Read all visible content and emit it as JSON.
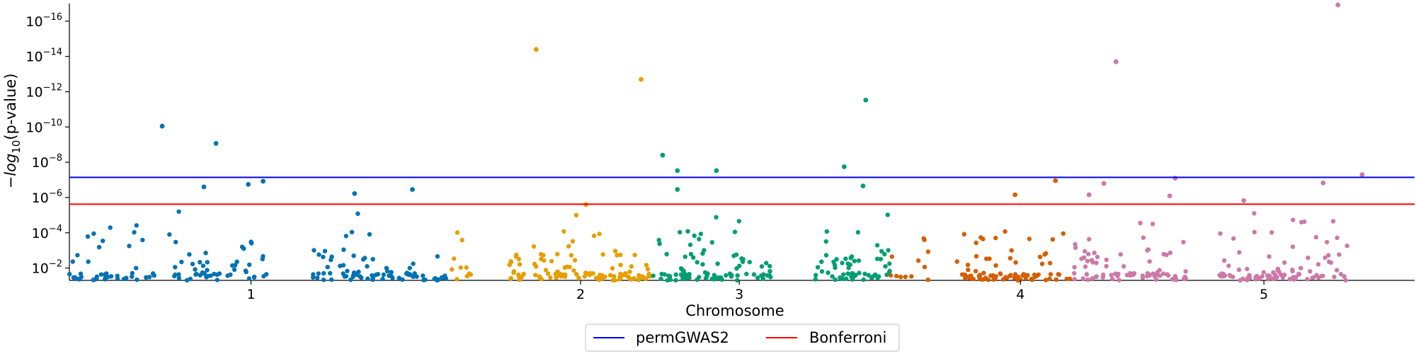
{
  "chart_data": {
    "type": "scatter",
    "title": "",
    "xlabel": "Chromosome",
    "ylabel_parts": {
      "prefix": "−",
      "log": "log",
      "sub": "10",
      "suffix": "(p-value)"
    },
    "y_scale": "log",
    "y_inverted": true,
    "ylim": [
      0.05,
      1e-17
    ],
    "y_ticks": [
      {
        "value": 0.01,
        "base": "10",
        "exp": "−2"
      },
      {
        "value": 0.0001,
        "base": "10",
        "exp": "−4"
      },
      {
        "value": 1e-06,
        "base": "10",
        "exp": "−6"
      },
      {
        "value": 1e-08,
        "base": "10",
        "exp": "−8"
      },
      {
        "value": 1e-10,
        "base": "10",
        "exp": "−10"
      },
      {
        "value": 1e-12,
        "base": "10",
        "exp": "−12"
      },
      {
        "value": 1e-14,
        "base": "10",
        "exp": "−14"
      },
      {
        "value": 1e-16,
        "base": "10",
        "exp": "−16"
      }
    ],
    "x_ticks": [
      {
        "label": "1",
        "position": 0.135
      },
      {
        "label": "2",
        "position": 0.38
      },
      {
        "label": "3",
        "position": 0.498
      },
      {
        "label": "4",
        "position": 0.707
      },
      {
        "label": "5",
        "position": 0.888
      }
    ],
    "thresholds": [
      {
        "name": "permGWAS2",
        "value": 7.2e-08,
        "color": "#0000ff"
      },
      {
        "name": "Bonferroni",
        "value": 2.4e-06,
        "color": "#ff0000"
      }
    ],
    "legend": {
      "placement": "below-center",
      "entries": [
        "permGWAS2",
        "Bonferroni"
      ]
    },
    "grid": false,
    "marker_colors": [
      "#0072b2",
      "#e69f00",
      "#009e73",
      "#d55e00",
      "#cc79a7"
    ],
    "segments": [
      {
        "color_index": 0,
        "x_range": [
          0.0,
          0.148
        ],
        "n": 95,
        "dense_max": 0.03
      },
      {
        "color_index": 0,
        "x_range": [
          0.18,
          0.28
        ],
        "n": 80,
        "dense_max": 0.04
      },
      {
        "color_index": 1,
        "x_range": [
          0.28,
          0.302
        ],
        "n": 10,
        "dense_max": 0.02
      },
      {
        "color_index": 1,
        "x_range": [
          0.327,
          0.432
        ],
        "n": 110,
        "dense_max": 0.04
      },
      {
        "color_index": 2,
        "x_range": [
          0.432,
          0.522
        ],
        "n": 85,
        "dense_max": 0.04
      },
      {
        "color_index": 2,
        "x_range": [
          0.552,
          0.61
        ],
        "n": 60,
        "dense_max": 0.03
      },
      {
        "color_index": 3,
        "x_range": [
          0.61,
          0.64
        ],
        "n": 12,
        "dense_max": 0.02
      },
      {
        "color_index": 3,
        "x_range": [
          0.657,
          0.745
        ],
        "n": 80,
        "dense_max": 0.04
      },
      {
        "color_index": 4,
        "x_range": [
          0.745,
          0.83
        ],
        "n": 80,
        "dense_max": 0.04
      },
      {
        "color_index": 4,
        "x_range": [
          0.855,
          0.95
        ],
        "n": 95,
        "dense_max": 0.04
      }
    ],
    "highlights": [
      {
        "x": 0.069,
        "y": 9e-11,
        "color_index": 0
      },
      {
        "x": 0.109,
        "y": 8.5e-10,
        "color_index": 0
      },
      {
        "x": 0.133,
        "y": 1.8e-07,
        "color_index": 0
      },
      {
        "x": 0.144,
        "y": 1.2e-07,
        "color_index": 0
      },
      {
        "x": 0.1,
        "y": 2.5e-07,
        "color_index": 0
      },
      {
        "x": 0.255,
        "y": 3.5e-07,
        "color_index": 0
      },
      {
        "x": 0.212,
        "y": 6e-07,
        "color_index": 0
      },
      {
        "x": 0.347,
        "y": 4e-15,
        "color_index": 1
      },
      {
        "x": 0.425,
        "y": 2e-13,
        "color_index": 1
      },
      {
        "x": 0.384,
        "y": 2.5e-06,
        "color_index": 1
      },
      {
        "x": 0.441,
        "y": 4e-09,
        "color_index": 2
      },
      {
        "x": 0.452,
        "y": 3e-08,
        "color_index": 2
      },
      {
        "x": 0.481,
        "y": 3e-08,
        "color_index": 2
      },
      {
        "x": 0.452,
        "y": 3.5e-07,
        "color_index": 2
      },
      {
        "x": 0.592,
        "y": 3e-12,
        "color_index": 2
      },
      {
        "x": 0.576,
        "y": 1.8e-08,
        "color_index": 2
      },
      {
        "x": 0.59,
        "y": 2.2e-07,
        "color_index": 2
      },
      {
        "x": 0.733,
        "y": 1.1e-07,
        "color_index": 3
      },
      {
        "x": 0.703,
        "y": 7e-07,
        "color_index": 3
      },
      {
        "x": 0.778,
        "y": 2e-14,
        "color_index": 4
      },
      {
        "x": 0.822,
        "y": 8e-08,
        "color_index": 4
      },
      {
        "x": 0.818,
        "y": 8e-07,
        "color_index": 4
      },
      {
        "x": 0.769,
        "y": 1.6e-07,
        "color_index": 4
      },
      {
        "x": 0.758,
        "y": 7e-07,
        "color_index": 4
      },
      {
        "x": 0.943,
        "y": 1.2e-17,
        "color_index": 4
      },
      {
        "x": 0.961,
        "y": 5e-08,
        "color_index": 4
      },
      {
        "x": 0.932,
        "y": 1.5e-07,
        "color_index": 4
      },
      {
        "x": 0.873,
        "y": 1.5e-06,
        "color_index": 4
      }
    ]
  }
}
